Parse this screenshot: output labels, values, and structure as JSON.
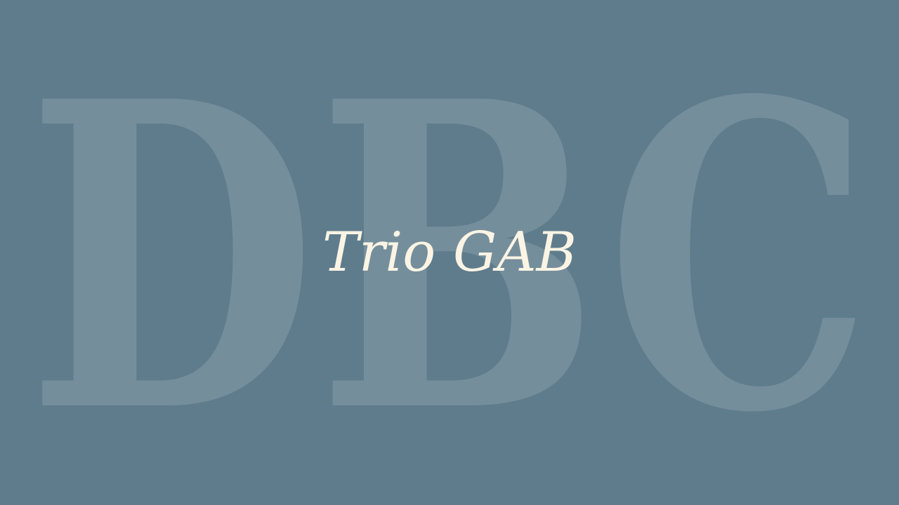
{
  "background": {
    "letters": "DBC",
    "color": "#5f7c8c",
    "letter_color": "rgba(255,255,255,0.14)"
  },
  "title": {
    "text": "Trio GAB",
    "color": "#fbf4e4"
  }
}
